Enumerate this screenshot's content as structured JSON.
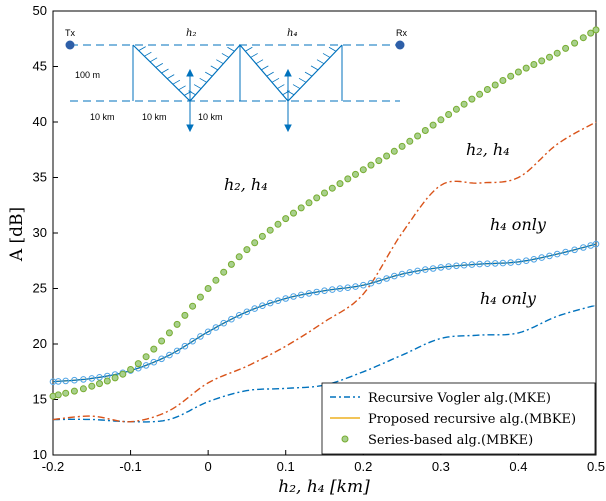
{
  "chart_data": {
    "type": "line",
    "xlabel": "h₂, h₄ [km]",
    "ylabel": "A [dB]",
    "xlim": [
      -0.2,
      0.5
    ],
    "ylim": [
      10,
      50
    ],
    "x_ticks": [
      "-0.2",
      "-0.1",
      "0",
      "0.1",
      "0.2",
      "0.3",
      "0.4",
      "0.5"
    ],
    "y_ticks": [
      "10",
      "15",
      "20",
      "25",
      "30",
      "35",
      "40",
      "45",
      "50"
    ],
    "grid": false,
    "legend_position": "bottom-right",
    "series": [
      {
        "name": "Recursive Vogler alg.(MKE)",
        "role": "h4_only_recursive_vogler",
        "style": "dash-dot",
        "color": "#0072BD",
        "x": [
          -0.2,
          -0.15,
          -0.1,
          -0.05,
          0.0,
          0.05,
          0.1,
          0.15,
          0.2,
          0.25,
          0.3,
          0.35,
          0.4,
          0.45,
          0.5
        ],
        "y": [
          13.2,
          13.2,
          13.0,
          13.2,
          14.8,
          15.8,
          16.0,
          16.3,
          17.5,
          19.0,
          20.5,
          20.8,
          21.0,
          22.5,
          23.5
        ]
      },
      {
        "name": "Recursive Vogler alg.(MKE)",
        "role": "h2_h4_recursive_vogler",
        "style": "dash-dot",
        "color": "#D95319",
        "x": [
          -0.2,
          -0.15,
          -0.1,
          -0.05,
          0.0,
          0.05,
          0.1,
          0.15,
          0.2,
          0.25,
          0.3,
          0.35,
          0.4,
          0.45,
          0.5
        ],
        "y": [
          13.2,
          13.5,
          13.0,
          14.0,
          16.5,
          18.0,
          19.8,
          22.0,
          24.5,
          30.0,
          34.3,
          34.5,
          35.0,
          38.0,
          40.0
        ]
      },
      {
        "name": "Proposed recursive alg.(MBKE)",
        "role": "h4_only_proposed",
        "style": "solid",
        "color": "#0072BD",
        "marker": "circle-open",
        "x": [
          -0.2,
          -0.15,
          -0.1,
          -0.05,
          0.0,
          0.05,
          0.1,
          0.15,
          0.2,
          0.25,
          0.3,
          0.35,
          0.4,
          0.45,
          0.5
        ],
        "y": [
          16.6,
          16.9,
          17.6,
          19.0,
          21.1,
          22.9,
          24.1,
          24.8,
          25.3,
          26.3,
          26.9,
          27.2,
          27.4,
          28.1,
          29.0
        ]
      },
      {
        "name": "Series-based alg.(MBKE)",
        "role": "h2_h4_series",
        "style": "markers",
        "color": "#77AC30",
        "marker": "circle-filled",
        "x": [
          -0.2,
          -0.15,
          -0.1,
          -0.05,
          0.0,
          0.05,
          0.1,
          0.15,
          0.2,
          0.25,
          0.3,
          0.35,
          0.4,
          0.45,
          0.5
        ],
        "y": [
          15.3,
          16.2,
          17.7,
          21.0,
          25.0,
          28.5,
          31.3,
          33.6,
          35.7,
          37.8,
          40.2,
          42.5,
          44.5,
          46.2,
          48.3
        ]
      }
    ],
    "annotations": {
      "left_h2_h4": "h₂, h₄",
      "right_h2_h4": "h₂, h₄",
      "h4_only_upper": "h₄ only",
      "h4_only_lower": "h₄ only"
    },
    "inset": {
      "tx": "Tx",
      "rx": "Rx",
      "h2": "h₂",
      "h4": "h₄",
      "height": "100 m",
      "dist1": "10 km",
      "dist2": "10 km",
      "dist3": "10 km"
    }
  },
  "colors": {
    "axes": "#000000",
    "blue": "#0072BD",
    "orange": "#D95319",
    "green": "#77AC30",
    "marker_face": "#A8D08D",
    "proposed_line": "#EDB120"
  }
}
